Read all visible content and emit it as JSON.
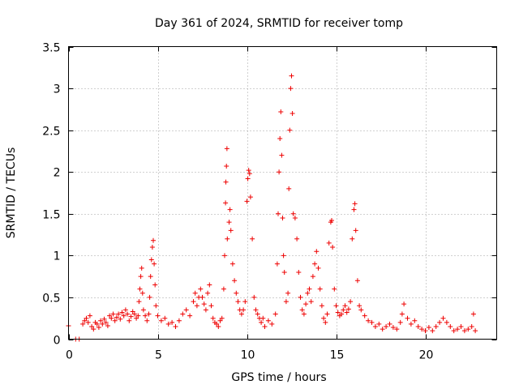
{
  "chart_data": {
    "type": "scatter",
    "title": "Day 361 of 2024, SRMTID for receiver tomp",
    "xlabel": "GPS time / hours",
    "ylabel": "SRMTID / TECUs",
    "xlim": [
      0,
      24
    ],
    "ylim": [
      0,
      3.5
    ],
    "xticks": [
      0,
      5,
      10,
      15,
      20
    ],
    "yticks": [
      0,
      0.5,
      1,
      1.5,
      2,
      2.5,
      3,
      3.5
    ],
    "xtick_labels": [
      "0",
      "5",
      "10",
      "15",
      "20"
    ],
    "ytick_labels": [
      "0",
      "0.5",
      "1",
      "1.5",
      "2",
      "2.5",
      "3",
      "3.5"
    ],
    "grid": true,
    "marker": "+",
    "color": "#ee0000",
    "series": [
      {
        "name": "SRMTID",
        "points": [
          [
            0.0,
            0.16
          ],
          [
            0.4,
            0.0
          ],
          [
            0.6,
            0.0
          ],
          [
            0.8,
            0.18
          ],
          [
            0.9,
            0.22
          ],
          [
            1.0,
            0.25
          ],
          [
            1.1,
            0.2
          ],
          [
            1.2,
            0.28
          ],
          [
            1.3,
            0.15
          ],
          [
            1.4,
            0.12
          ],
          [
            1.5,
            0.2
          ],
          [
            1.6,
            0.18
          ],
          [
            1.7,
            0.14
          ],
          [
            1.8,
            0.22
          ],
          [
            1.9,
            0.18
          ],
          [
            2.0,
            0.24
          ],
          [
            2.1,
            0.2
          ],
          [
            2.2,
            0.16
          ],
          [
            2.3,
            0.28
          ],
          [
            2.4,
            0.25
          ],
          [
            2.5,
            0.3
          ],
          [
            2.6,
            0.22
          ],
          [
            2.7,
            0.26
          ],
          [
            2.8,
            0.3
          ],
          [
            2.9,
            0.24
          ],
          [
            3.0,
            0.32
          ],
          [
            3.1,
            0.28
          ],
          [
            3.2,
            0.35
          ],
          [
            3.3,
            0.3
          ],
          [
            3.4,
            0.22
          ],
          [
            3.5,
            0.27
          ],
          [
            3.6,
            0.33
          ],
          [
            3.7,
            0.3
          ],
          [
            3.8,
            0.25
          ],
          [
            3.9,
            0.28
          ],
          [
            3.95,
            0.45
          ],
          [
            4.0,
            0.6
          ],
          [
            4.05,
            0.75
          ],
          [
            4.1,
            0.85
          ],
          [
            4.15,
            0.55
          ],
          [
            4.2,
            0.35
          ],
          [
            4.3,
            0.28
          ],
          [
            4.4,
            0.22
          ],
          [
            4.5,
            0.3
          ],
          [
            4.55,
            0.5
          ],
          [
            4.6,
            0.75
          ],
          [
            4.65,
            0.95
          ],
          [
            4.7,
            1.1
          ],
          [
            4.75,
            1.18
          ],
          [
            4.8,
            0.9
          ],
          [
            4.85,
            0.65
          ],
          [
            4.9,
            0.4
          ],
          [
            5.0,
            0.28
          ],
          [
            5.2,
            0.22
          ],
          [
            5.4,
            0.25
          ],
          [
            5.6,
            0.18
          ],
          [
            5.8,
            0.2
          ],
          [
            6.0,
            0.15
          ],
          [
            6.2,
            0.22
          ],
          [
            6.4,
            0.3
          ],
          [
            6.6,
            0.35
          ],
          [
            6.8,
            0.28
          ],
          [
            7.0,
            0.45
          ],
          [
            7.1,
            0.55
          ],
          [
            7.2,
            0.4
          ],
          [
            7.3,
            0.5
          ],
          [
            7.4,
            0.6
          ],
          [
            7.5,
            0.5
          ],
          [
            7.6,
            0.42
          ],
          [
            7.7,
            0.35
          ],
          [
            7.8,
            0.55
          ],
          [
            7.9,
            0.65
          ],
          [
            8.0,
            0.4
          ],
          [
            8.1,
            0.25
          ],
          [
            8.2,
            0.2
          ],
          [
            8.3,
            0.18
          ],
          [
            8.4,
            0.15
          ],
          [
            8.5,
            0.22
          ],
          [
            8.6,
            0.25
          ],
          [
            8.7,
            0.6
          ],
          [
            8.75,
            1.0
          ],
          [
            8.8,
            1.63
          ],
          [
            8.82,
            1.88
          ],
          [
            8.85,
            2.07
          ],
          [
            8.88,
            2.28
          ],
          [
            8.9,
            1.2
          ],
          [
            9.0,
            1.4
          ],
          [
            9.05,
            1.55
          ],
          [
            9.1,
            1.3
          ],
          [
            9.2,
            0.9
          ],
          [
            9.3,
            0.7
          ],
          [
            9.4,
            0.55
          ],
          [
            9.5,
            0.45
          ],
          [
            9.6,
            0.35
          ],
          [
            9.7,
            0.3
          ],
          [
            9.8,
            0.35
          ],
          [
            9.9,
            0.45
          ],
          [
            10.0,
            1.65
          ],
          [
            10.05,
            1.92
          ],
          [
            10.1,
            2.02
          ],
          [
            10.15,
            1.98
          ],
          [
            10.2,
            1.7
          ],
          [
            10.3,
            1.2
          ],
          [
            10.4,
            0.5
          ],
          [
            10.5,
            0.35
          ],
          [
            10.6,
            0.3
          ],
          [
            10.7,
            0.25
          ],
          [
            10.8,
            0.2
          ],
          [
            10.9,
            0.25
          ],
          [
            11.0,
            0.15
          ],
          [
            11.2,
            0.22
          ],
          [
            11.4,
            0.18
          ],
          [
            11.6,
            0.3
          ],
          [
            11.7,
            0.9
          ],
          [
            11.75,
            1.5
          ],
          [
            11.8,
            2.0
          ],
          [
            11.85,
            2.4
          ],
          [
            11.9,
            2.72
          ],
          [
            11.95,
            2.2
          ],
          [
            12.0,
            1.45
          ],
          [
            12.05,
            1.0
          ],
          [
            12.1,
            0.8
          ],
          [
            12.2,
            0.45
          ],
          [
            12.3,
            0.55
          ],
          [
            12.35,
            1.8
          ],
          [
            12.4,
            2.5
          ],
          [
            12.45,
            3.0
          ],
          [
            12.5,
            3.15
          ],
          [
            12.55,
            2.7
          ],
          [
            12.6,
            1.5
          ],
          [
            12.7,
            1.45
          ],
          [
            12.8,
            1.2
          ],
          [
            12.9,
            0.8
          ],
          [
            13.0,
            0.5
          ],
          [
            13.1,
            0.35
          ],
          [
            13.2,
            0.3
          ],
          [
            13.3,
            0.42
          ],
          [
            13.4,
            0.55
          ],
          [
            13.5,
            0.6
          ],
          [
            13.6,
            0.45
          ],
          [
            13.7,
            0.75
          ],
          [
            13.8,
            0.9
          ],
          [
            13.9,
            1.05
          ],
          [
            14.0,
            0.85
          ],
          [
            14.1,
            0.6
          ],
          [
            14.2,
            0.4
          ],
          [
            14.3,
            0.25
          ],
          [
            14.4,
            0.2
          ],
          [
            14.5,
            0.3
          ],
          [
            14.6,
            1.15
          ],
          [
            14.7,
            1.4
          ],
          [
            14.75,
            1.42
          ],
          [
            14.8,
            1.1
          ],
          [
            14.9,
            0.6
          ],
          [
            15.0,
            0.4
          ],
          [
            15.1,
            0.32
          ],
          [
            15.2,
            0.28
          ],
          [
            15.3,
            0.3
          ],
          [
            15.4,
            0.35
          ],
          [
            15.5,
            0.4
          ],
          [
            15.6,
            0.32
          ],
          [
            15.7,
            0.36
          ],
          [
            15.8,
            0.45
          ],
          [
            15.9,
            1.2
          ],
          [
            16.0,
            1.55
          ],
          [
            16.05,
            1.62
          ],
          [
            16.1,
            1.3
          ],
          [
            16.2,
            0.7
          ],
          [
            16.3,
            0.4
          ],
          [
            16.4,
            0.35
          ],
          [
            16.6,
            0.28
          ],
          [
            16.8,
            0.22
          ],
          [
            17.0,
            0.2
          ],
          [
            17.2,
            0.15
          ],
          [
            17.4,
            0.18
          ],
          [
            17.6,
            0.12
          ],
          [
            17.8,
            0.15
          ],
          [
            18.0,
            0.18
          ],
          [
            18.2,
            0.14
          ],
          [
            18.4,
            0.12
          ],
          [
            18.6,
            0.2
          ],
          [
            18.7,
            0.3
          ],
          [
            18.8,
            0.42
          ],
          [
            19.0,
            0.25
          ],
          [
            19.2,
            0.18
          ],
          [
            19.4,
            0.22
          ],
          [
            19.6,
            0.15
          ],
          [
            19.8,
            0.12
          ],
          [
            20.0,
            0.1
          ],
          [
            20.2,
            0.14
          ],
          [
            20.4,
            0.1
          ],
          [
            20.6,
            0.15
          ],
          [
            20.8,
            0.2
          ],
          [
            21.0,
            0.25
          ],
          [
            21.2,
            0.2
          ],
          [
            21.4,
            0.15
          ],
          [
            21.6,
            0.1
          ],
          [
            21.8,
            0.12
          ],
          [
            22.0,
            0.15
          ],
          [
            22.2,
            0.1
          ],
          [
            22.4,
            0.12
          ],
          [
            22.6,
            0.15
          ],
          [
            22.7,
            0.3
          ],
          [
            22.8,
            0.1
          ]
        ]
      }
    ]
  }
}
